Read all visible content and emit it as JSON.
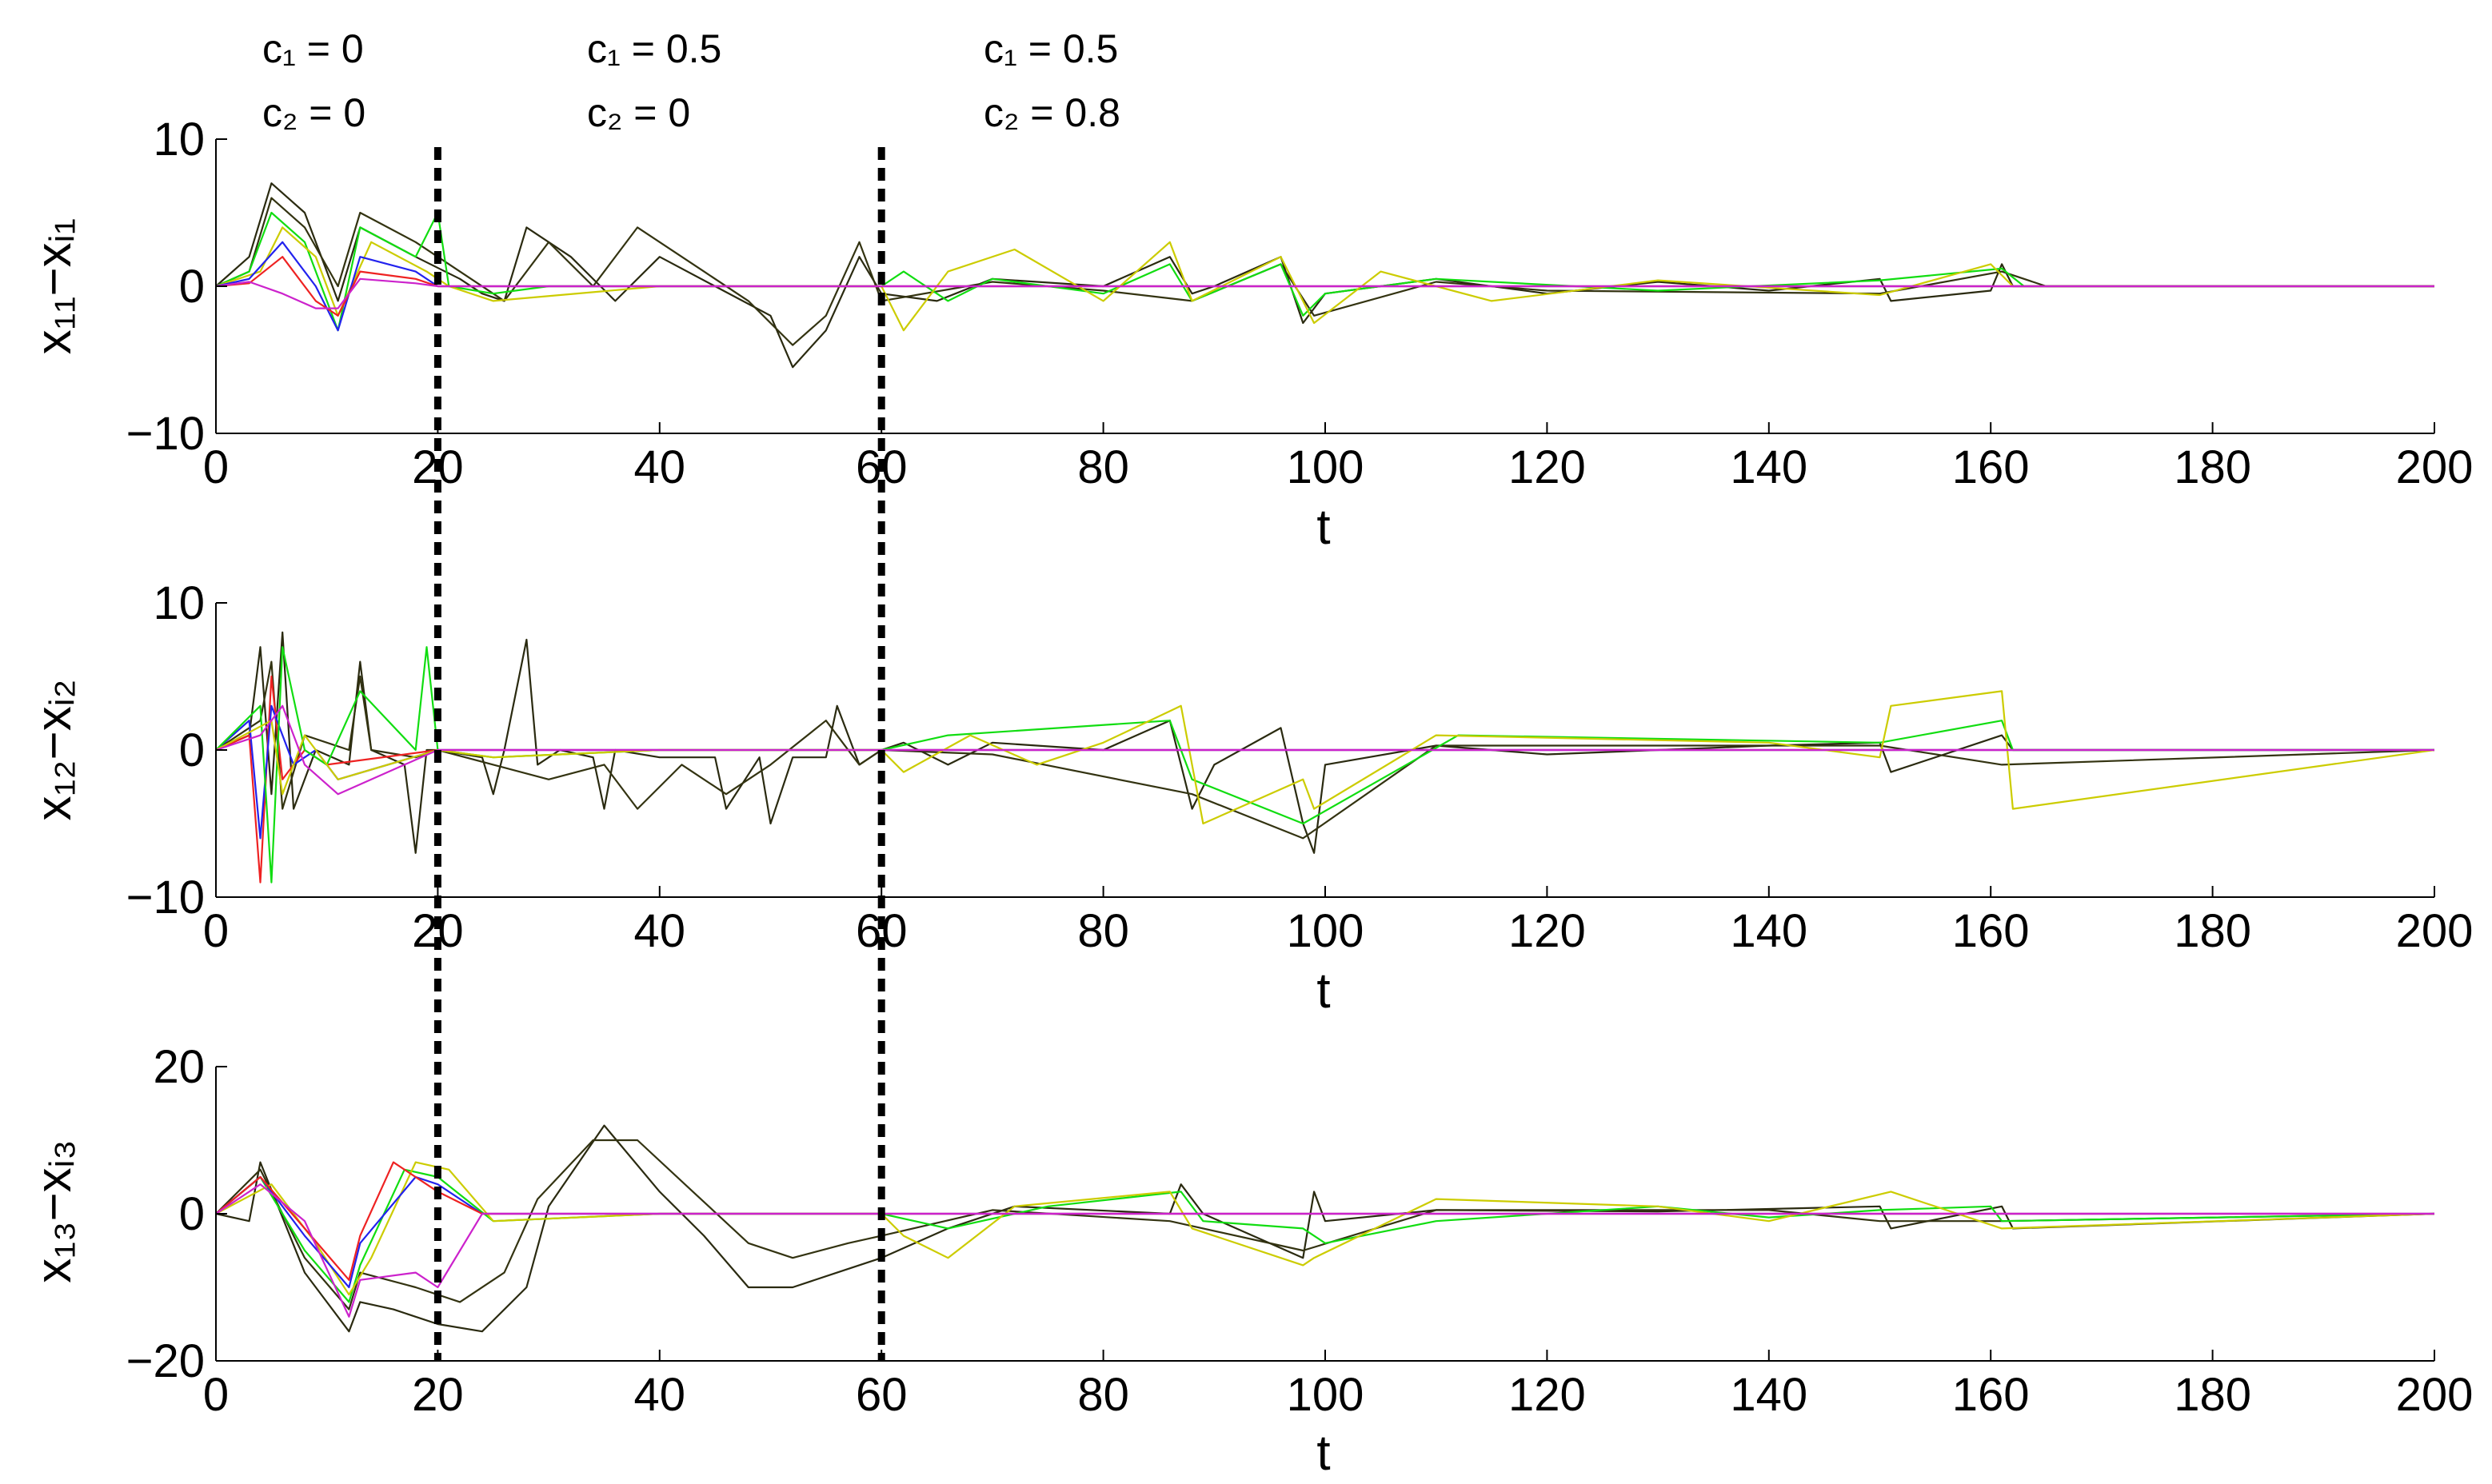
{
  "annotations": [
    {
      "c1": "c₁ = 0",
      "c2": "c₂ = 0"
    },
    {
      "c1": "c₁ = 0.5",
      "c2": "c₂ = 0"
    },
    {
      "c1": "c₁ = 0.5",
      "c2": "c₂ = 0.8"
    }
  ],
  "chart_data": [
    {
      "type": "line",
      "panel": "top",
      "ylabel": "x₁₁−xᵢ₁",
      "xlabel": "t",
      "xlim": [
        0,
        200
      ],
      "ylim": [
        -10,
        10
      ],
      "xticks": [
        "0",
        "20",
        "40",
        "60",
        "80",
        "100",
        "120",
        "140",
        "160",
        "180",
        "200"
      ],
      "yticks": [
        "10",
        "0",
        "−10"
      ],
      "switch_times": [
        20,
        60
      ],
      "series": [
        {
          "color": "#2a2a10",
          "x": [
            0,
            3,
            5,
            8,
            11,
            13,
            18,
            22,
            24,
            26,
            28,
            32,
            36,
            40,
            45,
            50,
            52,
            55,
            58,
            60,
            65,
            70,
            80,
            86,
            88,
            90,
            96,
            98,
            100,
            110,
            120,
            130,
            140,
            150,
            151,
            160,
            161,
            162,
            170,
            200
          ],
          "y": [
            0,
            2,
            7,
            5,
            -1,
            4,
            2,
            0.5,
            -0.5,
            -1,
            4,
            2,
            -1,
            2,
            0,
            -2,
            -5.5,
            -3,
            2,
            -0.5,
            -1,
            0.5,
            0,
            2,
            -0.5,
            0,
            2,
            -2.5,
            -0.5,
            0.5,
            -0.5,
            0.3,
            -0.3,
            0.5,
            -1,
            -0.3,
            1.5,
            0,
            0,
            0
          ]
        },
        {
          "color": "#333311",
          "x": [
            0,
            3,
            5,
            8,
            11,
            13,
            18,
            22,
            26,
            30,
            34,
            38,
            44,
            48,
            52,
            55,
            58,
            60,
            70,
            80,
            88,
            96,
            99,
            110,
            120,
            150,
            161,
            165,
            200
          ],
          "y": [
            0,
            1,
            6,
            4,
            0,
            5,
            3,
            1,
            -1,
            3,
            0,
            4,
            1,
            -1,
            -4,
            -2,
            3,
            -1,
            0.3,
            -0.3,
            -1,
            1.5,
            -2,
            0.3,
            -0.3,
            -0.5,
            1,
            0,
            0
          ]
        },
        {
          "color": "#11dd11",
          "x": [
            0,
            3,
            5,
            8,
            11,
            13,
            18,
            20,
            21,
            25,
            30,
            40,
            60,
            62,
            66,
            70,
            80,
            86,
            88,
            96,
            98,
            100,
            110,
            130,
            150,
            161,
            163,
            200
          ],
          "y": [
            0,
            1,
            5,
            3,
            -3,
            4,
            2,
            5,
            0,
            -0.5,
            0,
            0,
            0,
            1,
            -1,
            0.5,
            -0.5,
            1.5,
            -1,
            1.5,
            -2,
            -0.5,
            0.5,
            -0.3,
            0.4,
            1.2,
            0,
            0
          ]
        },
        {
          "color": "#cccc00",
          "x": [
            0,
            4,
            6,
            9,
            11,
            14,
            19,
            21,
            25,
            40,
            60,
            62,
            66,
            72,
            80,
            86,
            88,
            96,
            99,
            105,
            115,
            130,
            150,
            160,
            162,
            200
          ],
          "y": [
            0,
            1,
            4,
            2,
            -2,
            3,
            1,
            0,
            -1,
            0,
            0,
            -3,
            1,
            2.5,
            -1,
            3,
            -1,
            2,
            -2.5,
            1,
            -1,
            0.4,
            -0.6,
            1.5,
            0,
            0
          ]
        },
        {
          "color": "#2222ee",
          "x": [
            0,
            3,
            6,
            9,
            11,
            13,
            18,
            20,
            24,
            40,
            200
          ],
          "y": [
            0,
            0.5,
            3,
            0,
            -3,
            2,
            1,
            0,
            0,
            0,
            0
          ]
        },
        {
          "color": "#ee2222",
          "x": [
            0,
            3,
            6,
            9,
            11,
            13,
            18,
            20,
            24,
            40,
            200
          ],
          "y": [
            0,
            0.2,
            2,
            -1,
            -2,
            1,
            0.5,
            0,
            0,
            0,
            0
          ]
        },
        {
          "color": "#cc22cc",
          "x": [
            0,
            3,
            6,
            9,
            11,
            13,
            18,
            20,
            24,
            40,
            200
          ],
          "y": [
            0,
            0.3,
            -0.5,
            -1.5,
            -1.5,
            0.5,
            0.2,
            0,
            0,
            0,
            0
          ]
        }
      ]
    },
    {
      "type": "line",
      "panel": "middle",
      "ylabel": "x₁₂−xᵢ₂",
      "xlabel": "t",
      "xlim": [
        0,
        200
      ],
      "ylim": [
        -10,
        10
      ],
      "xticks": [
        "0",
        "20",
        "40",
        "60",
        "80",
        "100",
        "120",
        "140",
        "160",
        "180",
        "200"
      ],
      "yticks": [
        "10",
        "0",
        "−10"
      ],
      "switch_times": [
        20,
        60
      ],
      "series": [
        {
          "color": "#2a2a10",
          "x": [
            0,
            3,
            4,
            5,
            6,
            7,
            9,
            12,
            13,
            14,
            17,
            18,
            19,
            20,
            24,
            25,
            26,
            28,
            29,
            31,
            34,
            35,
            36,
            40,
            45,
            46,
            49,
            50,
            52,
            55,
            56,
            58,
            60,
            62,
            66,
            70,
            80,
            86,
            88,
            90,
            96,
            98,
            99,
            100,
            110,
            120,
            140,
            150,
            151,
            161,
            162,
            200
          ],
          "y": [
            0,
            1,
            7,
            -3,
            8,
            -4,
            0,
            -1,
            6,
            0,
            -1,
            -7,
            0,
            0,
            -0.5,
            -3,
            0,
            7.5,
            -1,
            0,
            -0.5,
            -4,
            0,
            -0.5,
            -0.5,
            -4,
            -0.5,
            -5,
            -0.5,
            -0.5,
            3,
            -1,
            0,
            0.5,
            -1,
            0.5,
            0,
            2,
            -4,
            -1,
            1.5,
            -5,
            -7,
            -1,
            0.3,
            -0.3,
            0.3,
            0.5,
            -1.5,
            1,
            0,
            0
          ]
        },
        {
          "color": "#333311",
          "x": [
            0,
            4,
            5,
            6,
            8,
            12,
            13,
            14,
            18,
            20,
            25,
            30,
            35,
            38,
            42,
            46,
            50,
            55,
            58,
            60,
            70,
            88,
            98,
            110,
            150,
            161,
            200
          ],
          "y": [
            0,
            2,
            6,
            -4,
            1,
            0,
            5,
            0,
            -0.5,
            0,
            -1,
            -2,
            -1,
            -4,
            -1,
            -3,
            -1,
            2,
            -1,
            0,
            -0.3,
            -3,
            -6,
            0.3,
            0.3,
            -1,
            0
          ]
        },
        {
          "color": "#ee2222",
          "x": [
            0,
            3,
            4,
            5,
            6,
            8,
            10,
            20,
            200
          ],
          "y": [
            0,
            1,
            -9,
            5,
            -2,
            0,
            -1,
            0,
            0
          ]
        },
        {
          "color": "#2222ee",
          "x": [
            0,
            3,
            4,
            5,
            7,
            9,
            11,
            20,
            200
          ],
          "y": [
            0,
            2,
            -6,
            3,
            -1,
            0,
            -2,
            0,
            0
          ]
        },
        {
          "color": "#11dd11",
          "x": [
            0,
            4,
            5,
            6,
            8,
            10,
            13,
            18,
            19,
            20,
            25,
            40,
            60,
            66,
            86,
            88,
            98,
            112,
            150,
            161,
            162,
            200
          ],
          "y": [
            0,
            3,
            -9,
            7,
            0,
            -1,
            4,
            0,
            7,
            0,
            -0.5,
            0,
            0,
            1,
            2,
            -2,
            -5,
            1,
            0.5,
            2,
            0,
            0
          ]
        },
        {
          "color": "#cccc00",
          "x": [
            0,
            5,
            6,
            8,
            11,
            20,
            25,
            40,
            60,
            62,
            68,
            74,
            80,
            87,
            89,
            98,
            99,
            110,
            140,
            150,
            151,
            161,
            162,
            200
          ],
          "y": [
            0,
            2,
            -3,
            1,
            -2,
            0,
            -0.5,
            0,
            0,
            -1.5,
            1,
            -1,
            0.5,
            3,
            -5,
            -2,
            -4,
            1,
            0.5,
            -0.5,
            3,
            4,
            -4,
            0
          ]
        },
        {
          "color": "#cc22cc",
          "x": [
            0,
            4,
            6,
            8,
            11,
            20,
            200
          ],
          "y": [
            0,
            1,
            3,
            -1,
            -3,
            0,
            0
          ]
        }
      ]
    },
    {
      "type": "line",
      "panel": "bottom",
      "ylabel": "x₁₃−xᵢ₃",
      "xlabel": "t",
      "xlim": [
        0,
        200
      ],
      "ylim": [
        -20,
        20
      ],
      "xticks": [
        "0",
        "20",
        "40",
        "60",
        "80",
        "100",
        "120",
        "140",
        "160",
        "180",
        "200"
      ],
      "yticks": [
        "20",
        "0",
        "−20"
      ],
      "switch_times": [
        20,
        60
      ],
      "series": [
        {
          "color": "#2a2a10",
          "x": [
            0,
            3,
            4,
            8,
            12,
            13,
            16,
            20,
            24,
            28,
            30,
            35,
            40,
            44,
            48,
            52,
            56,
            60,
            66,
            72,
            86,
            87,
            89,
            98,
            99,
            100,
            110,
            130,
            150,
            151,
            161,
            162,
            200
          ],
          "y": [
            0,
            -1,
            7,
            -8,
            -16,
            -12,
            -13,
            -15,
            -16,
            -10,
            1,
            12,
            3,
            -3,
            -10,
            -10,
            -8,
            -6,
            -2,
            1,
            0,
            4,
            0,
            -6,
            3,
            -1,
            0.5,
            0.3,
            1,
            -2,
            1,
            -2,
            0
          ]
        },
        {
          "color": "#333311",
          "x": [
            0,
            4,
            8,
            12,
            13,
            18,
            22,
            26,
            29,
            34,
            38,
            43,
            48,
            52,
            57,
            60,
            70,
            86,
            98,
            110,
            140,
            150,
            161,
            200
          ],
          "y": [
            0,
            6,
            -6,
            -13,
            -8,
            -10,
            -12,
            -8,
            2,
            10,
            10,
            3,
            -4,
            -6,
            -4,
            -3,
            0.5,
            -1,
            -5,
            0.5,
            0.5,
            -1,
            -1,
            0
          ]
        },
        {
          "color": "#11dd11",
          "x": [
            0,
            4,
            8,
            12,
            13,
            17,
            20,
            25,
            40,
            60,
            66,
            75,
            87,
            89,
            98,
            100,
            110,
            130,
            140,
            150,
            160,
            161,
            200
          ],
          "y": [
            0,
            5,
            -5,
            -12,
            -7,
            6,
            5,
            -1,
            0,
            0,
            -2,
            1,
            3,
            -1,
            -2,
            -4,
            -1,
            1,
            -0.5,
            0.5,
            1,
            -1,
            0
          ]
        },
        {
          "color": "#cccc00",
          "x": [
            0,
            5,
            9,
            12,
            14,
            18,
            21,
            25,
            40,
            60,
            62,
            66,
            72,
            86,
            88,
            98,
            99,
            110,
            130,
            140,
            151,
            161,
            200
          ],
          "y": [
            0,
            4,
            -4,
            -11,
            -6,
            7,
            6,
            -1,
            0,
            0,
            -3,
            -6,
            1,
            3,
            -2,
            -7,
            -6,
            2,
            1,
            -1,
            3,
            -2,
            0
          ]
        },
        {
          "color": "#2222ee",
          "x": [
            0,
            4,
            8,
            12,
            13,
            18,
            20,
            24,
            40,
            200
          ],
          "y": [
            0,
            5,
            -3,
            -10,
            -4,
            5,
            4,
            0,
            0,
            0
          ]
        },
        {
          "color": "#ee2222",
          "x": [
            0,
            4,
            8,
            12,
            13,
            16,
            20,
            24,
            40,
            200
          ],
          "y": [
            0,
            5,
            -2,
            -9,
            -3,
            7,
            3,
            0,
            0,
            0
          ]
        },
        {
          "color": "#cc22cc",
          "x": [
            0,
            4,
            8,
            12,
            13,
            18,
            20,
            24,
            40,
            200
          ],
          "y": [
            0,
            4,
            -1,
            -14,
            -9,
            -8,
            -10,
            0,
            0,
            0
          ]
        }
      ]
    }
  ]
}
